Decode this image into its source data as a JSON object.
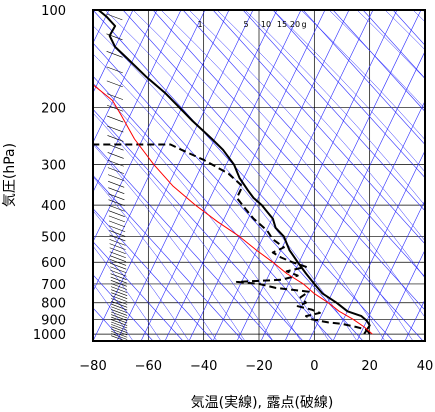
{
  "chart_data": {
    "type": "line",
    "title": "",
    "xlabel": "気温(実線), 露点(破線)",
    "ylabel": "気圧(hPa)",
    "xlim": [
      -80,
      40
    ],
    "ylim": [
      1050,
      100
    ],
    "y_scale": "log",
    "x_ticks": [
      "−80",
      "−60",
      "−40",
      "−20",
      "0",
      "20",
      "40"
    ],
    "y_ticks": [
      "100",
      "200",
      "300",
      "400",
      "500",
      "600",
      "700",
      "800",
      "900",
      "1000"
    ],
    "mixing_ratio_labels": [
      "1",
      "5",
      "10",
      "15",
      "20",
      "g"
    ],
    "grid": true,
    "series": [
      {
        "line": "temperature",
        "color": "#000000",
        "style": "solid",
        "points": [
          [
            20,
            1000
          ],
          [
            19,
            970
          ],
          [
            20,
            940
          ],
          [
            19,
            910
          ],
          [
            17,
            880
          ],
          [
            12,
            850
          ],
          [
            8,
            800
          ],
          [
            3,
            750
          ],
          [
            0,
            700
          ],
          [
            -3,
            650
          ],
          [
            -6,
            600
          ],
          [
            -9,
            550
          ],
          [
            -11,
            500
          ],
          [
            -14,
            470
          ],
          [
            -15,
            440
          ],
          [
            -17,
            420
          ],
          [
            -19,
            400
          ],
          [
            -22,
            380
          ],
          [
            -24,
            360
          ],
          [
            -27,
            330
          ],
          [
            -29,
            300
          ],
          [
            -33,
            270
          ],
          [
            -37,
            250
          ],
          [
            -44,
            220
          ],
          [
            -54,
            180
          ],
          [
            -61,
            160
          ],
          [
            -68,
            140
          ],
          [
            -72,
            130
          ],
          [
            -74,
            120
          ],
          [
            -72,
            112
          ],
          [
            -75,
            105
          ],
          [
            -78,
            100
          ]
        ]
      },
      {
        "line": "dewpoint",
        "color": "#000000",
        "style": "dashed",
        "points": [
          [
            18,
            1000
          ],
          [
            19,
            970
          ],
          [
            15,
            950
          ],
          [
            10,
            930
          ],
          [
            5,
            920
          ],
          [
            -1,
            900
          ],
          [
            -3,
            880
          ],
          [
            2,
            860
          ],
          [
            -1,
            840
          ],
          [
            -6,
            820
          ],
          [
            -3,
            800
          ],
          [
            -5,
            770
          ],
          [
            -2,
            740
          ],
          [
            -14,
            720
          ],
          [
            -20,
            700
          ],
          [
            -28,
            690
          ],
          [
            -12,
            680
          ],
          [
            -6,
            660
          ],
          [
            -10,
            640
          ],
          [
            -3,
            620
          ],
          [
            -8,
            600
          ],
          [
            -12,
            580
          ],
          [
            -15,
            560
          ],
          [
            -11,
            540
          ],
          [
            -15,
            510
          ],
          [
            -17,
            480
          ],
          [
            -22,
            440
          ],
          [
            -25,
            410
          ],
          [
            -28,
            380
          ],
          [
            -26,
            350
          ],
          [
            -31,
            320
          ],
          [
            -40,
            290
          ],
          [
            -48,
            270
          ],
          [
            -52,
            260
          ],
          [
            -74,
            260
          ],
          [
            -80,
            260
          ]
        ]
      },
      {
        "line": "reference",
        "color": "#ff0000",
        "style": "solid",
        "points": [
          [
            21,
            1000
          ],
          [
            18,
            950
          ],
          [
            14,
            900
          ],
          [
            9,
            850
          ],
          [
            5,
            800
          ],
          [
            0,
            750
          ],
          [
            -4,
            700
          ],
          [
            -10,
            650
          ],
          [
            -15,
            600
          ],
          [
            -21,
            550
          ],
          [
            -27,
            500
          ],
          [
            -35,
            450
          ],
          [
            -43,
            400
          ],
          [
            -51,
            350
          ],
          [
            -58,
            300
          ],
          [
            -65,
            250
          ],
          [
            -70,
            210
          ],
          [
            -73,
            190
          ],
          [
            -80,
            170
          ]
        ]
      }
    ]
  }
}
